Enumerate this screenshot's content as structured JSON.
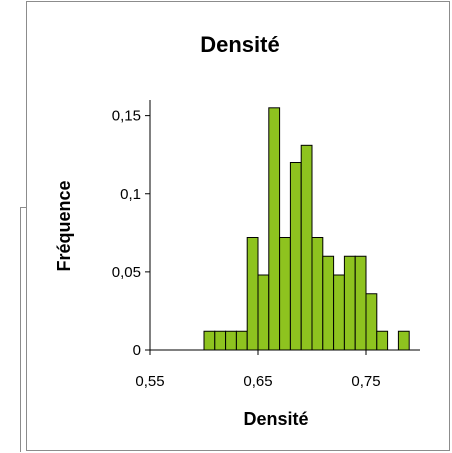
{
  "colors": {
    "bar_fill": "#8ec31f",
    "bar_stroke": "#000000",
    "axis": "#000000"
  },
  "chart_data": {
    "type": "bar",
    "title": "Densité",
    "xlabel": "Densité",
    "ylabel": "Fréquence",
    "xlim": [
      0.55,
      0.8
    ],
    "ylim": [
      0,
      0.16
    ],
    "bin_width": 0.01,
    "x_ticks": [
      {
        "value": 0.55,
        "label": "0,55"
      },
      {
        "value": 0.65,
        "label": "0,65"
      },
      {
        "value": 0.75,
        "label": "0,75"
      }
    ],
    "y_ticks": [
      {
        "value": 0,
        "label": "0"
      },
      {
        "value": 0.05,
        "label": "0,05"
      },
      {
        "value": 0.1,
        "label": "0,1"
      },
      {
        "value": 0.15,
        "label": "0,15"
      }
    ],
    "bins": [
      {
        "x": 0.6,
        "value": 0.012
      },
      {
        "x": 0.61,
        "value": 0.012
      },
      {
        "x": 0.62,
        "value": 0.012
      },
      {
        "x": 0.63,
        "value": 0.012
      },
      {
        "x": 0.64,
        "value": 0.072
      },
      {
        "x": 0.65,
        "value": 0.048
      },
      {
        "x": 0.66,
        "value": 0.155
      },
      {
        "x": 0.67,
        "value": 0.072
      },
      {
        "x": 0.68,
        "value": 0.12
      },
      {
        "x": 0.69,
        "value": 0.131
      },
      {
        "x": 0.7,
        "value": 0.072
      },
      {
        "x": 0.71,
        "value": 0.06
      },
      {
        "x": 0.72,
        "value": 0.048
      },
      {
        "x": 0.73,
        "value": 0.06
      },
      {
        "x": 0.74,
        "value": 0.06
      },
      {
        "x": 0.75,
        "value": 0.036
      },
      {
        "x": 0.76,
        "value": 0.012
      },
      {
        "x": 0.78,
        "value": 0.012
      }
    ],
    "grid": false,
    "legend": "none"
  }
}
